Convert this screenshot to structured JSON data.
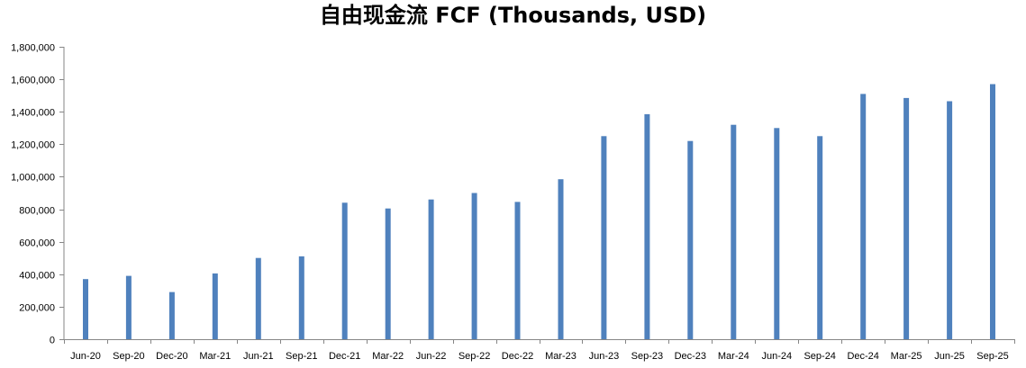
{
  "chart_data": {
    "type": "bar",
    "title": "自由现金流 FCF (Thousands, USD)",
    "xlabel": "",
    "ylabel": "",
    "ylim": [
      0,
      1800000
    ],
    "yticks": [
      "0",
      "200,000",
      "400,000",
      "600,000",
      "800,000",
      "1,000,000",
      "1,200,000",
      "1,400,000",
      "1,600,000",
      "1,800,000"
    ],
    "grid": false,
    "bar_color": "#4F81BD",
    "categories": [
      "Jun-20",
      "Sep-20",
      "Dec-20",
      "Mar-21",
      "Jun-21",
      "Sep-21",
      "Dec-21",
      "Mar-22",
      "Jun-22",
      "Sep-22",
      "Dec-22",
      "Mar-23",
      "Jun-23",
      "Sep-23",
      "Dec-23",
      "Mar-24",
      "Jun-24",
      "Sep-24",
      "Dec-24",
      "Mar-25",
      "Jun-25",
      "Sep-25"
    ],
    "values": [
      370000,
      390000,
      290000,
      405000,
      500000,
      510000,
      840000,
      805000,
      860000,
      900000,
      845000,
      985000,
      1250000,
      1385000,
      1220000,
      1320000,
      1300000,
      1250000,
      1510000,
      1485000,
      1465000,
      1570000
    ]
  }
}
